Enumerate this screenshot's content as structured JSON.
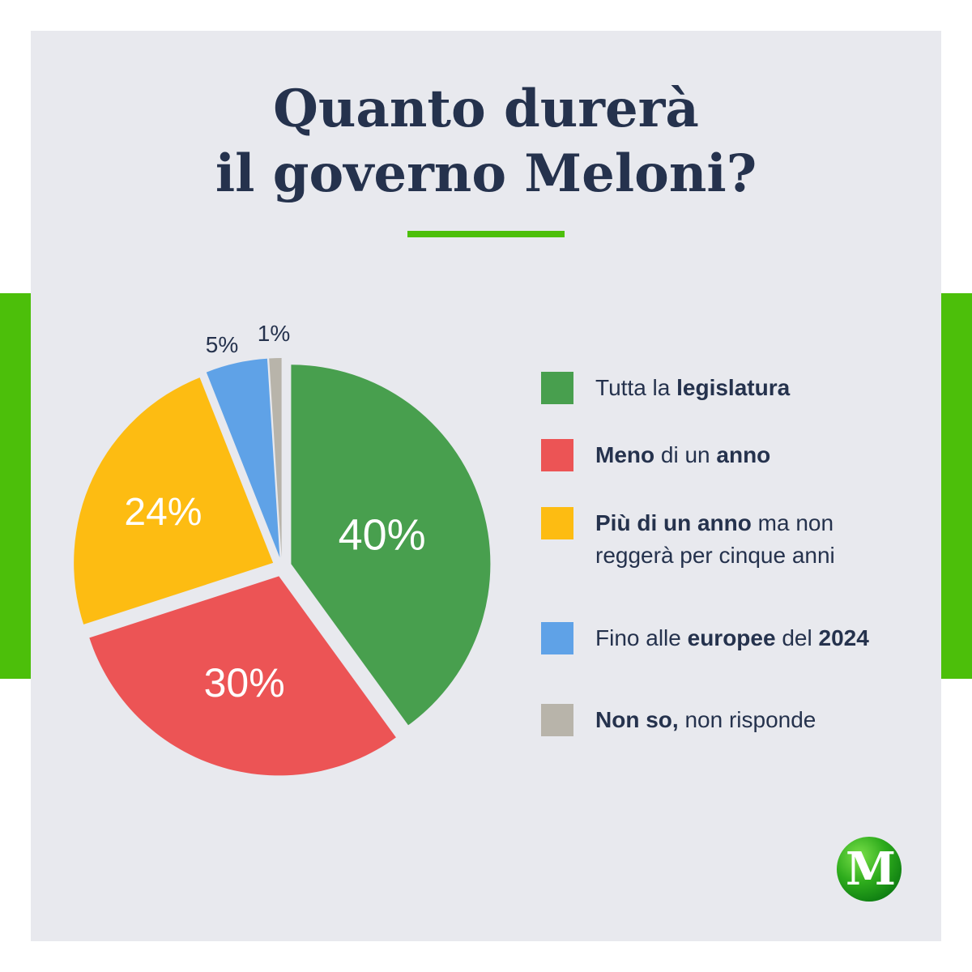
{
  "header": {
    "title_line1": "Quanto durerà",
    "title_line2": "il governo Meloni?"
  },
  "colors": {
    "background": "#e8e9ee",
    "accent_green": "#4cbf0a",
    "text": "#25324d"
  },
  "chart_data": {
    "type": "pie",
    "unit": "%",
    "slices": [
      {
        "label": "Tutta la legislatura",
        "value": 40,
        "value_label": "40%",
        "color": "#489f4e"
      },
      {
        "label": "Meno di un anno",
        "value": 30,
        "value_label": "30%",
        "color": "#ec5455"
      },
      {
        "label": "Più di un anno ma non reggerà per cinque anni",
        "value": 24,
        "value_label": "24%",
        "color": "#fdbc12"
      },
      {
        "label": "Fino alle europee del 2024",
        "value": 5,
        "value_label": "5%",
        "color": "#5fa2e7"
      },
      {
        "label": "Non so, non risponde",
        "value": 1,
        "value_label": "1%",
        "color": "#b8b4aa"
      }
    ]
  },
  "legend": {
    "items": [
      {
        "parts": [
          {
            "text": "Tutta la ",
            "bold": false
          },
          {
            "text": "legislatura",
            "bold": true
          }
        ]
      },
      {
        "parts": [
          {
            "text": "Meno",
            "bold": true
          },
          {
            "text": " di un ",
            "bold": false
          },
          {
            "text": "anno",
            "bold": true
          }
        ]
      },
      {
        "parts": [
          {
            "text": "Più di un anno",
            "bold": true
          },
          {
            "text": " ma non reggerà per cinque anni",
            "bold": false
          }
        ]
      },
      {
        "parts": [
          {
            "text": "Fino alle ",
            "bold": false
          },
          {
            "text": "europee",
            "bold": true
          },
          {
            "text": " del ",
            "bold": false
          },
          {
            "text": "2024",
            "bold": true
          }
        ]
      },
      {
        "parts": [
          {
            "text": "Non so,",
            "bold": true
          },
          {
            "text": " non risponde",
            "bold": false
          }
        ]
      }
    ]
  },
  "logo": {
    "letter": "M"
  }
}
